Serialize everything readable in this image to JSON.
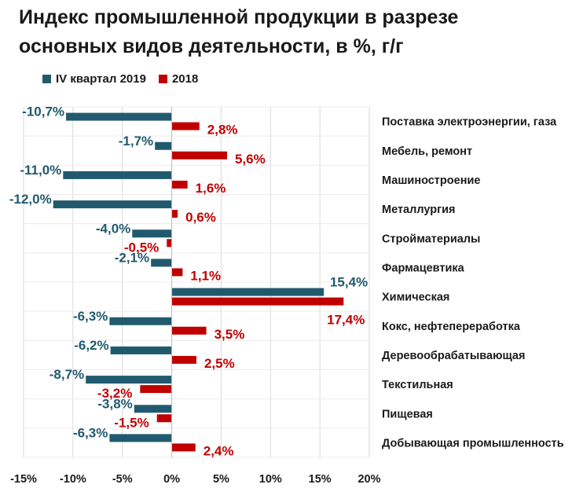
{
  "title_line1": "Индекс промышленной продукции в разрезе",
  "title_line2": "основных видов деятельности, в %, г/г",
  "legend": [
    {
      "label": "IV квартал 2019",
      "color": "#215a6e"
    },
    {
      "label": "2018",
      "color": "#c00000"
    }
  ],
  "chart_data": {
    "type": "bar",
    "orientation": "horizontal",
    "title": "Индекс промышленной продукции в разрезе основных видов деятельности, в %, г/г",
    "categories": [
      "Поставка электроэнергии, газа",
      "Мебель, ремонт",
      "Машиностроение",
      "Металлургия",
      "Стройматериалы",
      "Фармацевтика",
      "Химическая",
      "Кокс, нефтепереработка",
      "Деревообрабатывающая",
      "Текстильная",
      "Пищевая",
      "Добывающая промышленность"
    ],
    "series": [
      {
        "name": "IV квартал 2019",
        "color": "#215a6e",
        "values": [
          -10.7,
          -1.7,
          -11.0,
          -12.0,
          -4.0,
          -2.1,
          15.4,
          -6.3,
          -6.2,
          -8.7,
          -3.8,
          -6.3
        ],
        "labels": [
          "-10,7%",
          "-1,7%",
          "-11,0%",
          "-12,0%",
          "-4,0%",
          "-2,1%",
          "15,4%",
          "-6,3%",
          "-6,2%",
          "-8,7%",
          "-3,8%",
          "-6,3%"
        ]
      },
      {
        "name": "2018",
        "color": "#c00000",
        "values": [
          2.8,
          5.6,
          1.6,
          0.6,
          -0.5,
          1.1,
          17.4,
          3.5,
          2.5,
          -3.2,
          -1.5,
          2.4
        ],
        "labels": [
          "2,8%",
          "5,6%",
          "1,6%",
          "0,6%",
          "-0,5%",
          "1,1%",
          "17,4%",
          "3,5%",
          "2,5%",
          "-3,2%",
          "-1,5%",
          "2,4%"
        ]
      }
    ],
    "xlim": [
      -15,
      20
    ],
    "xticks": [
      -15,
      -10,
      -5,
      0,
      5,
      10,
      15,
      20
    ],
    "xtick_labels": [
      "-15%",
      "-10%",
      "-5%",
      "0%",
      "5%",
      "10%",
      "15%",
      "20%"
    ],
    "grid": true,
    "legend_position": "top-left"
  }
}
